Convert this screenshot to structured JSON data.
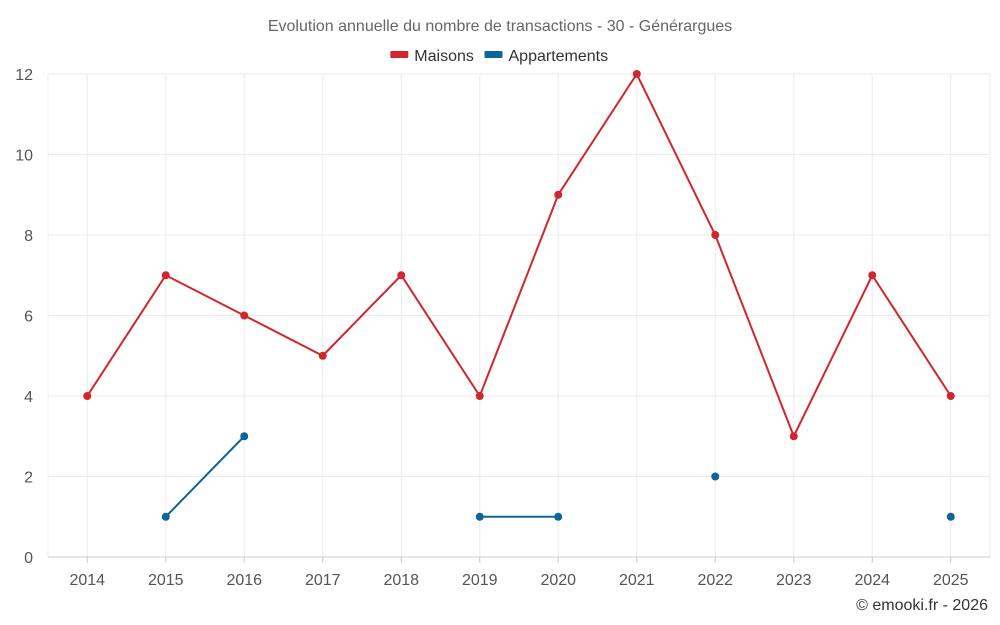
{
  "chart_data": {
    "type": "line",
    "title": "Evolution annuelle du nombre de transactions - 30 - Générargues",
    "categories": [
      "2014",
      "2015",
      "2016",
      "2017",
      "2018",
      "2019",
      "2020",
      "2021",
      "2022",
      "2023",
      "2024",
      "2025"
    ],
    "ylim": [
      0,
      12
    ],
    "yticks": [
      "0",
      "2",
      "4",
      "6",
      "8",
      "10",
      "12"
    ],
    "grid": true,
    "legend_position": "top-center",
    "series": [
      {
        "name": "Maisons",
        "color": "#d0262d",
        "values": [
          4,
          7,
          6,
          5,
          7,
          4,
          9,
          12,
          8,
          3,
          7,
          4
        ]
      },
      {
        "name": "Appartements",
        "color": "#0f6598",
        "values": [
          null,
          1,
          3,
          null,
          null,
          1,
          1,
          null,
          2,
          null,
          null,
          1
        ]
      }
    ],
    "xlabel": "",
    "ylabel": ""
  },
  "credit": "© emooki.fr - 2026"
}
